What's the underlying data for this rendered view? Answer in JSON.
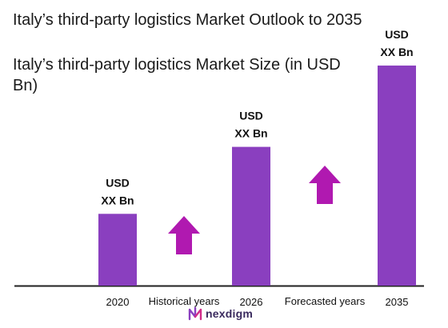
{
  "chart_data": {
    "type": "bar",
    "title": "Italy’s third-party logistics Market Outlook to 2035",
    "subtitle": "Italy’s third-party logistics Market Size (in USD Bn)",
    "categories": [
      "2020",
      "2026",
      "2035"
    ],
    "values": [
      30,
      58,
      92
    ],
    "value_labels": [
      "USD\nXX Bn",
      "USD\nXX Bn",
      "USD\nXX Bn"
    ],
    "ylim": [
      0,
      100
    ],
    "grid": false,
    "annotations": [
      {
        "text": "Historical years",
        "arrow": "up"
      },
      {
        "text": "Forecasted years",
        "arrow": "up"
      }
    ],
    "colors": {
      "bar": "#8a3fbf",
      "arrow": "#b019b0",
      "axis": "#222222"
    }
  },
  "branding": {
    "logo_text": "nexdigm",
    "logo_icon": "nexdigm-logo-icon"
  }
}
